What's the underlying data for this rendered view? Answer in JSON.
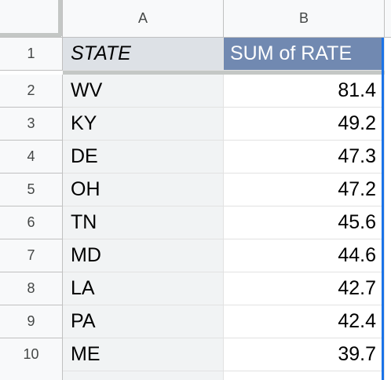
{
  "columns": [
    "A",
    "B"
  ],
  "header": {
    "row_number": "1",
    "state": "STATE",
    "sum": "SUM of RATE"
  },
  "rows": [
    {
      "n": "2",
      "state": "WV",
      "rate": "81.4"
    },
    {
      "n": "3",
      "state": "KY",
      "rate": "49.2"
    },
    {
      "n": "4",
      "state": "DE",
      "rate": "47.3"
    },
    {
      "n": "5",
      "state": "OH",
      "rate": "47.2"
    },
    {
      "n": "6",
      "state": "TN",
      "rate": "45.6"
    },
    {
      "n": "7",
      "state": "MD",
      "rate": "44.6"
    },
    {
      "n": "8",
      "state": "LA",
      "rate": "42.7"
    },
    {
      "n": "9",
      "state": "PA",
      "rate": "42.4"
    },
    {
      "n": "10",
      "state": "ME",
      "rate": "39.7"
    }
  ],
  "colors": {
    "pivot_header_fill": "#7189b1",
    "state_header_fill": "#dde1e6",
    "state_column_fill": "#f1f3f4",
    "selection_border": "#1a73e8",
    "header_bg": "#f8f9fa"
  }
}
